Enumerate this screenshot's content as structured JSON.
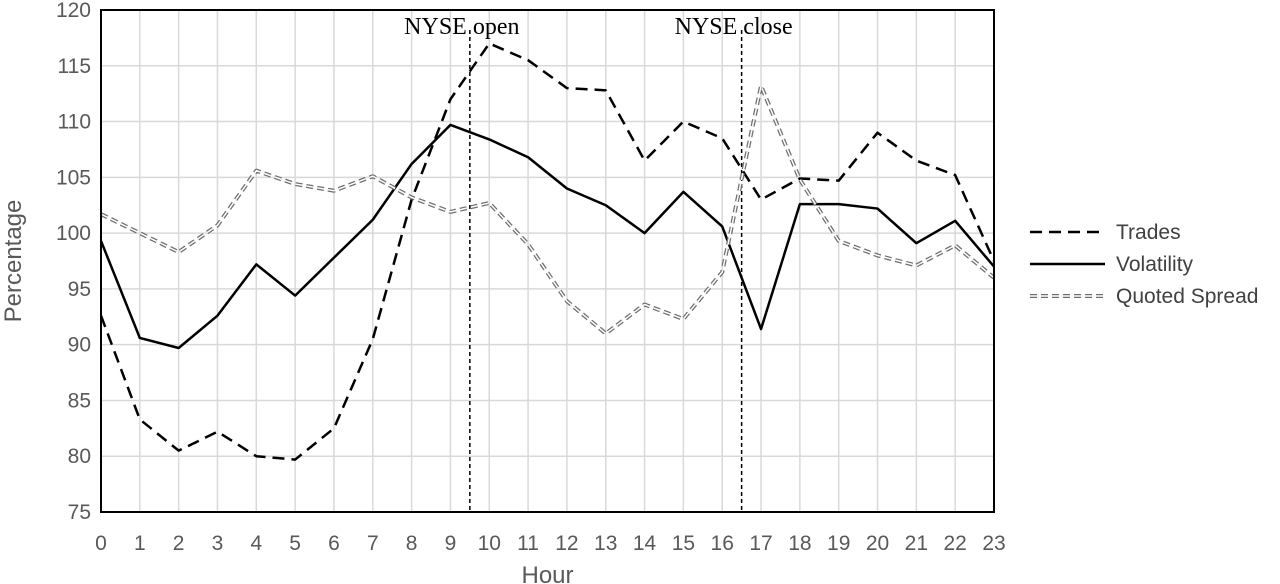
{
  "chart_data": {
    "type": "line",
    "xlabel": "Hour",
    "ylabel": "Percentage",
    "x": [
      0,
      1,
      2,
      3,
      4,
      5,
      6,
      7,
      8,
      9,
      10,
      11,
      12,
      13,
      14,
      15,
      16,
      17,
      18,
      19,
      20,
      21,
      22,
      23
    ],
    "ylim": [
      75,
      120
    ],
    "yticks": [
      75,
      80,
      85,
      90,
      95,
      100,
      105,
      110,
      115,
      120
    ],
    "grid": true,
    "legend_position": "right",
    "series": [
      {
        "name": "Trades",
        "style": "dashed",
        "values": [
          92.6,
          83.3,
          80.5,
          82.2,
          80.0,
          79.7,
          82.5,
          90.5,
          103.0,
          112.0,
          117.0,
          115.5,
          113.0,
          112.8,
          106.5,
          110.0,
          108.5,
          103.0,
          104.9,
          104.7,
          109.0,
          106.5,
          105.2,
          97.5
        ]
      },
      {
        "name": "Volatility",
        "style": "solid",
        "values": [
          99.3,
          90.6,
          89.7,
          92.6,
          97.2,
          94.4,
          97.8,
          101.2,
          106.2,
          109.7,
          108.4,
          106.8,
          104.0,
          102.5,
          100.0,
          103.7,
          100.6,
          91.4,
          102.6,
          102.6,
          102.2,
          99.1,
          101.1,
          97.0
        ]
      },
      {
        "name": "Quoted Spread",
        "style": "double-dashed",
        "values": [
          101.7,
          100.0,
          98.3,
          100.7,
          105.6,
          104.4,
          103.8,
          105.1,
          103.2,
          101.9,
          102.7,
          99.0,
          93.9,
          91.0,
          93.6,
          92.3,
          96.5,
          113.2,
          104.8,
          99.3,
          98.0,
          97.1,
          98.9,
          96.0
        ]
      }
    ],
    "annotations": [
      {
        "text": "NYSE open",
        "x": 9.5
      },
      {
        "text": "NYSE close",
        "x": 16.5
      }
    ]
  }
}
